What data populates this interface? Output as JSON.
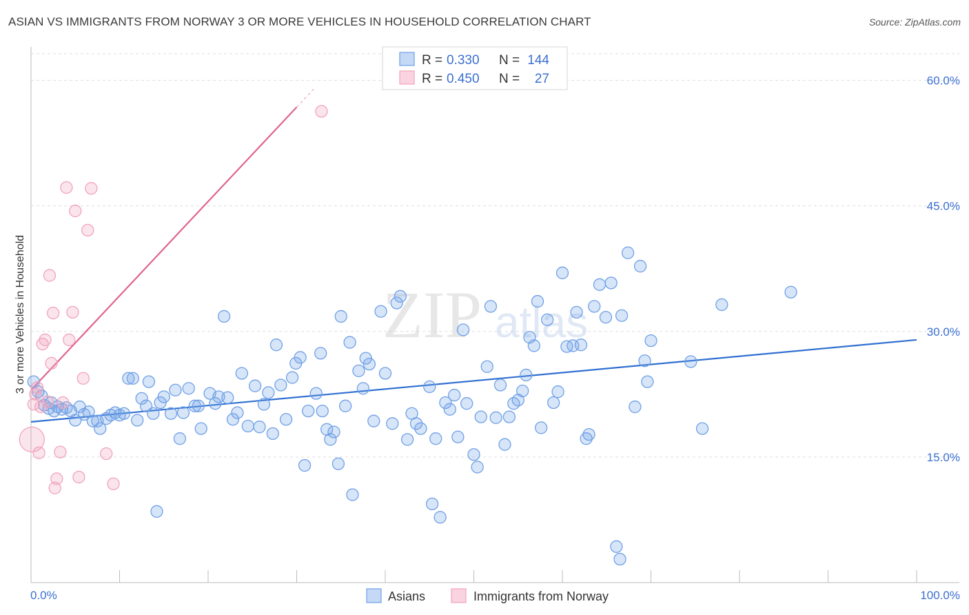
{
  "header": {
    "title": "ASIAN VS IMMIGRANTS FROM NORWAY 3 OR MORE VEHICLES IN HOUSEHOLD CORRELATION CHART",
    "source": "Source: ZipAtlas.com"
  },
  "watermark": "ZIPatlas",
  "colors": {
    "asians": "#6fa0e6",
    "asians_line": "#2f6fd1",
    "norway": "#f2a3bb",
    "norway_line": "#e0648c",
    "grid": "#dddddd",
    "axis_label": "#3b6fd0"
  },
  "chart_data": {
    "type": "scatter",
    "title": "ASIAN VS IMMIGRANTS FROM NORWAY 3 OR MORE VEHICLES IN HOUSEHOLD CORRELATION CHART",
    "xlabel": "",
    "ylabel": "3 or more Vehicles in Household",
    "xlim": [
      0,
      100
    ],
    "ylim": [
      0,
      64
    ],
    "x_tick_labels": [
      "0.0%",
      "100.0%"
    ],
    "y_ticks": [
      15,
      30,
      45,
      60
    ],
    "y_tick_labels": [
      "15.0%",
      "30.0%",
      "45.0%",
      "60.0%"
    ],
    "grid": true,
    "legend": {
      "position": "top-center",
      "rows": [
        {
          "r_label": "R =",
          "r_value": "0.330",
          "n_label": "N =",
          "n_value": "144"
        },
        {
          "r_label": "R =",
          "r_value": "0.450",
          "n_label": "N =",
          "n_value": "27"
        }
      ]
    },
    "bottom_legend": [
      "Asians",
      "Immigrants from Norway"
    ],
    "series": [
      {
        "name": "Asians",
        "r": 0.33,
        "n": 144,
        "trend": {
          "x": [
            0,
            100
          ],
          "y": [
            19.2,
            29.0
          ]
        },
        "points": [
          [
            0.3,
            24.0
          ],
          [
            0.8,
            22.8
          ],
          [
            1.2,
            22.3
          ],
          [
            1.5,
            21.2
          ],
          [
            2.0,
            20.8
          ],
          [
            2.3,
            21.5
          ],
          [
            2.6,
            20.5
          ],
          [
            3.0,
            21.0
          ],
          [
            3.5,
            20.7
          ],
          [
            4.0,
            20.9
          ],
          [
            4.5,
            20.5
          ],
          [
            5.0,
            19.4
          ],
          [
            5.5,
            21.0
          ],
          [
            6.0,
            20.1
          ],
          [
            6.5,
            20.4
          ],
          [
            7.0,
            19.3
          ],
          [
            7.5,
            19.3
          ],
          [
            7.8,
            18.4
          ],
          [
            8.5,
            19.6
          ],
          [
            9.0,
            20.0
          ],
          [
            9.5,
            20.3
          ],
          [
            10.0,
            20.0
          ],
          [
            10.5,
            20.2
          ],
          [
            11.0,
            24.4
          ],
          [
            11.5,
            24.4
          ],
          [
            12.0,
            19.4
          ],
          [
            12.5,
            22.0
          ],
          [
            13.0,
            21.1
          ],
          [
            13.3,
            24.0
          ],
          [
            13.8,
            20.2
          ],
          [
            14.2,
            8.5
          ],
          [
            14.6,
            21.5
          ],
          [
            15.0,
            22.2
          ],
          [
            15.8,
            20.2
          ],
          [
            16.3,
            23.0
          ],
          [
            16.8,
            17.2
          ],
          [
            17.2,
            20.3
          ],
          [
            17.8,
            23.2
          ],
          [
            18.5,
            21.1
          ],
          [
            18.9,
            21.1
          ],
          [
            19.2,
            18.4
          ],
          [
            20.2,
            22.6
          ],
          [
            20.8,
            21.4
          ],
          [
            21.2,
            22.2
          ],
          [
            21.8,
            31.8
          ],
          [
            22.2,
            22.1
          ],
          [
            22.8,
            19.5
          ],
          [
            23.3,
            20.3
          ],
          [
            23.8,
            25.0
          ],
          [
            24.5,
            18.7
          ],
          [
            25.3,
            23.5
          ],
          [
            25.8,
            18.6
          ],
          [
            26.3,
            21.3
          ],
          [
            26.8,
            22.7
          ],
          [
            27.3,
            17.8
          ],
          [
            27.7,
            28.4
          ],
          [
            28.2,
            23.6
          ],
          [
            28.8,
            19.5
          ],
          [
            29.5,
            24.5
          ],
          [
            29.9,
            26.2
          ],
          [
            30.4,
            26.9
          ],
          [
            30.9,
            14.0
          ],
          [
            31.3,
            20.5
          ],
          [
            32.2,
            22.6
          ],
          [
            32.7,
            27.4
          ],
          [
            32.9,
            20.5
          ],
          [
            33.4,
            18.3
          ],
          [
            33.8,
            17.1
          ],
          [
            34.2,
            18.0
          ],
          [
            34.7,
            14.2
          ],
          [
            35.0,
            31.8
          ],
          [
            35.5,
            21.1
          ],
          [
            36.0,
            28.7
          ],
          [
            36.3,
            10.5
          ],
          [
            37.0,
            25.3
          ],
          [
            37.5,
            23.2
          ],
          [
            37.8,
            26.8
          ],
          [
            38.2,
            26.1
          ],
          [
            38.7,
            19.3
          ],
          [
            39.5,
            32.4
          ],
          [
            40.0,
            25.0
          ],
          [
            40.8,
            19.0
          ],
          [
            41.3,
            33.4
          ],
          [
            41.7,
            34.2
          ],
          [
            42.5,
            17.1
          ],
          [
            43.0,
            20.2
          ],
          [
            43.5,
            19.0
          ],
          [
            44.0,
            18.4
          ],
          [
            45.0,
            23.4
          ],
          [
            45.3,
            9.4
          ],
          [
            45.7,
            17.2
          ],
          [
            46.2,
            7.8
          ],
          [
            46.8,
            21.5
          ],
          [
            47.3,
            20.7
          ],
          [
            47.8,
            22.4
          ],
          [
            48.2,
            17.4
          ],
          [
            48.8,
            30.2
          ],
          [
            49.2,
            21.4
          ],
          [
            50.0,
            15.3
          ],
          [
            50.4,
            13.8
          ],
          [
            50.8,
            19.8
          ],
          [
            51.5,
            25.8
          ],
          [
            51.9,
            33.0
          ],
          [
            52.5,
            19.7
          ],
          [
            53.0,
            23.6
          ],
          [
            53.5,
            16.5
          ],
          [
            54.0,
            19.8
          ],
          [
            54.5,
            21.4
          ],
          [
            55.0,
            21.8
          ],
          [
            55.5,
            22.9
          ],
          [
            55.9,
            24.8
          ],
          [
            56.3,
            29.3
          ],
          [
            56.8,
            28.3
          ],
          [
            57.2,
            33.6
          ],
          [
            57.6,
            18.5
          ],
          [
            58.3,
            31.4
          ],
          [
            59.0,
            21.5
          ],
          [
            59.5,
            22.8
          ],
          [
            60.0,
            37.0
          ],
          [
            60.5,
            28.2
          ],
          [
            61.2,
            28.3
          ],
          [
            61.6,
            32.3
          ],
          [
            62.1,
            28.4
          ],
          [
            62.7,
            17.2
          ],
          [
            63.0,
            17.7
          ],
          [
            63.6,
            33.0
          ],
          [
            64.2,
            35.6
          ],
          [
            64.9,
            31.7
          ],
          [
            65.5,
            35.8
          ],
          [
            66.7,
            31.9
          ],
          [
            67.4,
            39.4
          ],
          [
            68.2,
            21.0
          ],
          [
            68.8,
            37.8
          ],
          [
            69.3,
            26.5
          ],
          [
            69.6,
            24.0
          ],
          [
            70.0,
            28.9
          ],
          [
            74.5,
            26.4
          ],
          [
            75.8,
            18.4
          ],
          [
            78.0,
            33.2
          ],
          [
            85.8,
            34.7
          ],
          [
            66.1,
            4.3
          ],
          [
            66.5,
            2.8
          ]
        ]
      },
      {
        "name": "Immigrants from Norway",
        "r": 0.45,
        "n": 27,
        "trend": {
          "x": [
            0,
            30
          ],
          "y": [
            23.0,
            56.8
          ]
        },
        "points": [
          [
            0.1,
            17.1
          ],
          [
            0.3,
            21.3
          ],
          [
            0.5,
            22.5
          ],
          [
            0.7,
            23.3
          ],
          [
            0.9,
            15.5
          ],
          [
            1.1,
            21.0
          ],
          [
            1.3,
            28.5
          ],
          [
            1.6,
            29.0
          ],
          [
            1.9,
            21.6
          ],
          [
            2.1,
            36.7
          ],
          [
            2.3,
            26.2
          ],
          [
            2.5,
            32.2
          ],
          [
            2.7,
            11.3
          ],
          [
            2.9,
            12.4
          ],
          [
            3.3,
            15.6
          ],
          [
            3.6,
            21.5
          ],
          [
            4.0,
            47.2
          ],
          [
            4.3,
            29.0
          ],
          [
            4.7,
            32.3
          ],
          [
            5.0,
            44.4
          ],
          [
            5.4,
            12.6
          ],
          [
            5.9,
            24.4
          ],
          [
            6.4,
            42.1
          ],
          [
            6.8,
            47.1
          ],
          [
            8.5,
            15.4
          ],
          [
            9.3,
            11.8
          ],
          [
            32.8,
            56.3
          ]
        ]
      }
    ]
  }
}
